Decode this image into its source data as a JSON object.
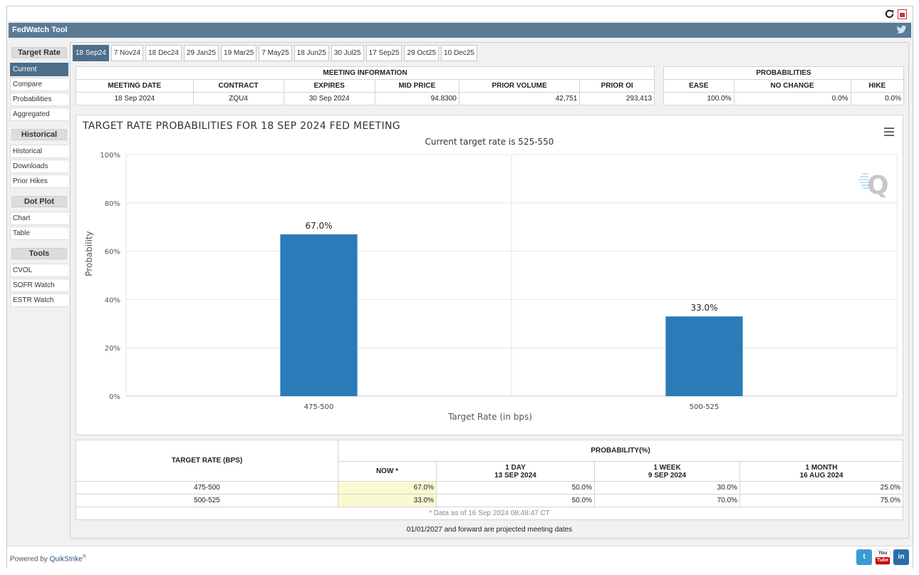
{
  "app": {
    "title": "FedWatch Tool"
  },
  "sidebar": {
    "sections": [
      {
        "heading": "Target Rate",
        "items": [
          "Current",
          "Compare",
          "Probabilities",
          "Aggregated"
        ]
      },
      {
        "heading": "Historical",
        "items": [
          "Historical",
          "Downloads",
          "Prior Hikes"
        ]
      },
      {
        "heading": "Dot Plot",
        "items": [
          "Chart",
          "Table"
        ]
      },
      {
        "heading": "Tools",
        "items": [
          "CVOL",
          "SOFR Watch",
          "ESTR Watch"
        ]
      }
    ],
    "active_item": "Current"
  },
  "tabs": [
    "18 Sep24",
    "7 Nov24",
    "18 Dec24",
    "29 Jan25",
    "19 Mar25",
    "7 May25",
    "18 Jun25",
    "30 Jul25",
    "17 Sep25",
    "29 Oct25",
    "10 Dec25"
  ],
  "meeting_info": {
    "heading": "MEETING INFORMATION",
    "columns": [
      "MEETING DATE",
      "CONTRACT",
      "EXPIRES",
      "MID PRICE",
      "PRIOR VOLUME",
      "PRIOR OI"
    ],
    "values": [
      "18 Sep 2024",
      "ZQU4",
      "30 Sep 2024",
      "94.8300",
      "42,751",
      "293,413"
    ]
  },
  "probabilities": {
    "heading": "PROBABILITIES",
    "columns": [
      "EASE",
      "NO CHANGE",
      "HIKE"
    ],
    "values": [
      "100.0%",
      "0.0%",
      "0.0%"
    ]
  },
  "chart": {
    "title": "TARGET RATE PROBABILITIES FOR 18 SEP 2024 FED MEETING",
    "subtitle": "Current target rate is 525-550"
  },
  "chart_data": {
    "type": "bar",
    "categories": [
      "475-500",
      "500-525"
    ],
    "values": [
      67.0,
      33.0
    ],
    "data_labels": [
      "67.0%",
      "33.0%"
    ],
    "xlabel": "Target Rate (in bps)",
    "ylabel": "Probability",
    "ylim": [
      0,
      100
    ],
    "yticks": [
      "0%",
      "20%",
      "40%",
      "60%",
      "80%",
      "100%"
    ],
    "grid": true,
    "bar_color": "#2b7bb9"
  },
  "prob_table": {
    "col_target": "TARGET RATE (BPS)",
    "col_group": "PROBABILITY(%)",
    "now": "NOW *",
    "day_1": "1 DAY",
    "day_1_date": "13 SEP 2024",
    "week_1": "1 WEEK",
    "week_1_date": "9 SEP 2024",
    "month_1": "1 MONTH",
    "month_1_date": "16 AUG 2024",
    "rows": [
      {
        "rate": "475-500",
        "now": "67.0%",
        "day": "50.0%",
        "week": "30.0%",
        "month": "25.0%"
      },
      {
        "rate": "500-525",
        "now": "33.0%",
        "day": "50.0%",
        "week": "70.0%",
        "month": "75.0%"
      }
    ],
    "footnote": "* Data as of 16 Sep 2024 08:48:47 CT"
  },
  "projected_note": "01/01/2027 and forward are projected meeting dates",
  "footer": {
    "powered_by": "Powered by",
    "brand": "QuikStrike",
    "reg": "®"
  },
  "social": {
    "youtube_top": "You",
    "youtube_bottom": "Tube",
    "linkedin": "in",
    "twitter": "t"
  }
}
